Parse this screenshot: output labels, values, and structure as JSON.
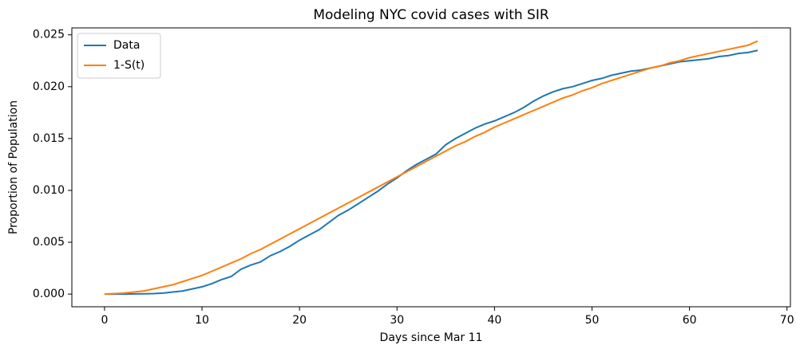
{
  "chart_data": {
    "type": "line",
    "title": "Modeling NYC covid cases with SIR",
    "xlabel": "Days since Mar 11",
    "ylabel": "Proportion of Population",
    "x": [
      0,
      1,
      2,
      3,
      4,
      5,
      6,
      7,
      8,
      9,
      10,
      11,
      12,
      13,
      14,
      15,
      16,
      17,
      18,
      19,
      20,
      21,
      22,
      23,
      24,
      25,
      26,
      27,
      28,
      29,
      30,
      31,
      32,
      33,
      34,
      35,
      36,
      37,
      38,
      39,
      40,
      41,
      42,
      43,
      44,
      45,
      46,
      47,
      48,
      49,
      50,
      51,
      52,
      53,
      54,
      55,
      56,
      57,
      58,
      59,
      60,
      61,
      62,
      63,
      64,
      65,
      66,
      67
    ],
    "series": [
      {
        "name": "Data",
        "color": "#1f77b4",
        "values": [
          0,
          0,
          0,
          2e-05,
          3e-05,
          5e-05,
          0.0001,
          0.0002,
          0.0003,
          0.0005,
          0.0007,
          0.001,
          0.0014,
          0.0017,
          0.0024,
          0.0028,
          0.0031,
          0.0037,
          0.0041,
          0.0046,
          0.0052,
          0.0057,
          0.0062,
          0.0069,
          0.0076,
          0.0081,
          0.0087,
          0.0093,
          0.0099,
          0.0106,
          0.0112,
          0.0119,
          0.0125,
          0.013,
          0.0135,
          0.0144,
          0.015,
          0.0155,
          0.016,
          0.0164,
          0.0167,
          0.0171,
          0.0175,
          0.018,
          0.0186,
          0.0191,
          0.0195,
          0.0198,
          0.02,
          0.0203,
          0.0206,
          0.0208,
          0.0211,
          0.0213,
          0.0215,
          0.0216,
          0.0218,
          0.022,
          0.0222,
          0.0224,
          0.0225,
          0.0226,
          0.0227,
          0.0229,
          0.023,
          0.0232,
          0.0233,
          0.0235
        ]
      },
      {
        "name": "1-S(t)",
        "color": "#ff7f0e",
        "values": [
          0,
          5e-05,
          0.0001,
          0.0002,
          0.0003,
          0.0005,
          0.0007,
          0.0009,
          0.0012,
          0.0015,
          0.0018,
          0.0022,
          0.0026,
          0.003,
          0.0034,
          0.0039,
          0.0043,
          0.0048,
          0.0053,
          0.0058,
          0.0063,
          0.0068,
          0.0073,
          0.0078,
          0.0083,
          0.0088,
          0.0093,
          0.0098,
          0.0103,
          0.0108,
          0.0113,
          0.0118,
          0.0123,
          0.0128,
          0.0133,
          0.0138,
          0.0143,
          0.0147,
          0.0152,
          0.0156,
          0.0161,
          0.0165,
          0.0169,
          0.0173,
          0.0177,
          0.0181,
          0.0185,
          0.0189,
          0.0192,
          0.0196,
          0.0199,
          0.0203,
          0.0206,
          0.0209,
          0.0212,
          0.0215,
          0.0218,
          0.022,
          0.0223,
          0.0225,
          0.0228,
          0.023,
          0.0232,
          0.0234,
          0.0236,
          0.0238,
          0.024,
          0.0244
        ]
      }
    ],
    "xlim": [
      -3.35,
      70.35
    ],
    "xticks": [
      0,
      10,
      20,
      30,
      40,
      50,
      60,
      70
    ],
    "ylim": [
      -0.00122,
      0.02567
    ],
    "yticks": [
      {
        "value": 0,
        "label": "0.000"
      },
      0.005,
      {
        "value": 0.01,
        "label": "0.010"
      },
      0.015,
      {
        "value": 0.02,
        "label": "0.020"
      },
      0.025
    ],
    "legend": "upper left"
  }
}
